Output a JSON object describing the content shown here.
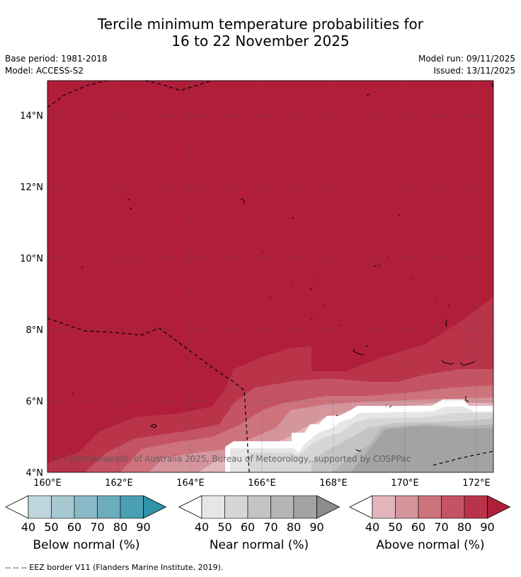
{
  "title": {
    "line1": "Tercile minimum temperature probabilities for",
    "line2": "16 to 22 November 2025"
  },
  "meta": {
    "base_period": "Base period: 1981-2018",
    "model": "Model: ACCESS-S2",
    "model_run": "Model run: 09/11/2025",
    "issued": "Issued: 13/11/2025"
  },
  "map": {
    "lat_labels": [
      "14°N",
      "12°N",
      "10°N",
      "8°N",
      "6°N",
      "4°N"
    ],
    "lon_labels": [
      "160°E",
      "162°E",
      "164°E",
      "166°E",
      "168°E",
      "170°E",
      "172°E"
    ],
    "copyright": "© Commonwealth of Australia 2025, Bureau of Meteorology, supported by COSPPac"
  },
  "legends": [
    {
      "name": "Below normal (%)",
      "ticks": [
        "40",
        "50",
        "60",
        "70",
        "80",
        "90"
      ],
      "colors": [
        "#c0d6dd",
        "#a6c9d1",
        "#89b8c6",
        "#6cadbd",
        "#4b9fb2",
        "#2e93a8"
      ]
    },
    {
      "name": "Near normal (%)",
      "ticks": [
        "40",
        "50",
        "60",
        "70",
        "80",
        "90"
      ],
      "colors": [
        "#e6e6e6",
        "#d6d6d6",
        "#c4c4c4",
        "#b4b4b4",
        "#a3a3a3",
        "#8c8c8c"
      ]
    },
    {
      "name": "Above normal (%)",
      "ticks": [
        "40",
        "50",
        "60",
        "70",
        "80",
        "90"
      ],
      "colors": [
        "#e2b6bc",
        "#d4959d",
        "#cd737c",
        "#c45463",
        "#b93349",
        "#b01e3a"
      ]
    }
  ],
  "footer": "--  --  -- EEZ border V11 (Flanders Marine Institute, 2019)."
}
